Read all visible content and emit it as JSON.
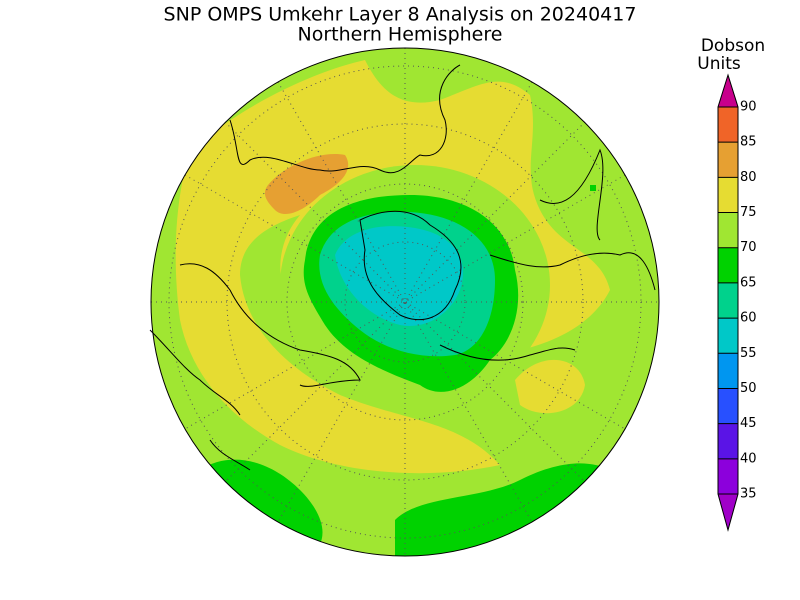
{
  "title": "SNP OMPS Umkehr Layer 8 Analysis on 20240417",
  "subtitle": "Northern Hemisphere",
  "colorbar": {
    "label": [
      "Dobson",
      "Units"
    ],
    "levels": [
      35,
      40,
      45,
      50,
      55,
      60,
      65,
      70,
      75,
      80,
      85,
      90
    ],
    "colors": [
      "#8c00dc",
      "#5a14e6",
      "#2850ff",
      "#0096f0",
      "#00c8c8",
      "#00d28c",
      "#00d200",
      "#a0e632",
      "#e6dc32",
      "#e6a032",
      "#f06428"
    ],
    "under_color": "#a000c8",
    "over_color": "#c8008c"
  }
}
